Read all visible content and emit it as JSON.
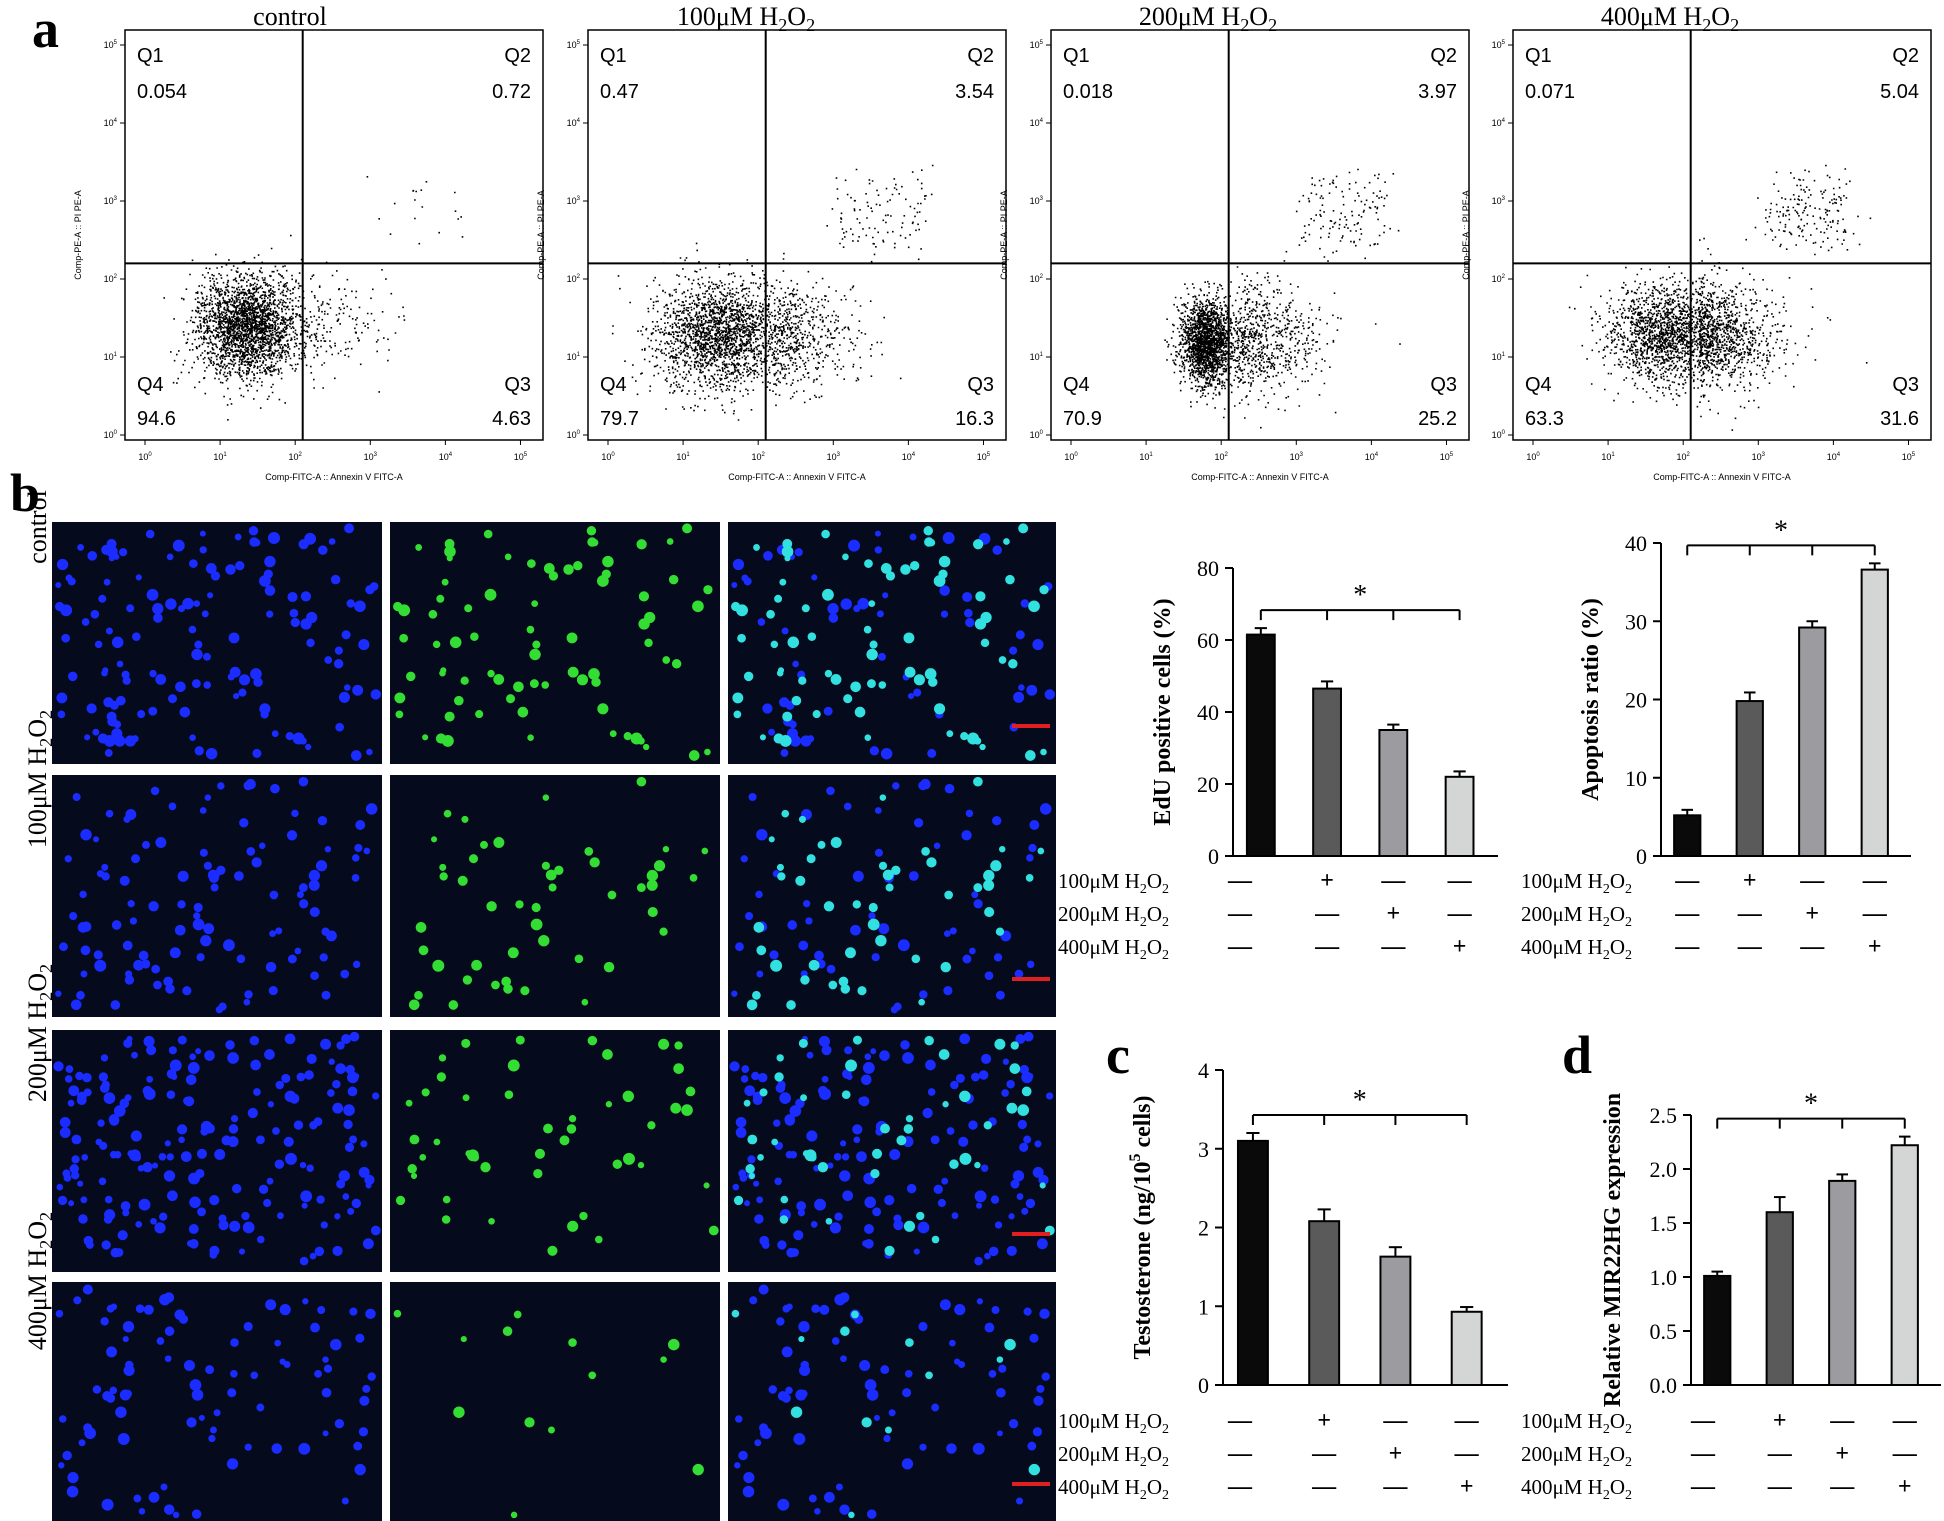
{
  "panel_labels": {
    "a": "a",
    "b": "b",
    "c": "c",
    "d": "d"
  },
  "flow": {
    "x_axis_label": "Comp-FITC-A :: Annexin V FITC-A",
    "y_axis_label": "Comp-PE-A :: PI PE-A",
    "x_ticks": [
      "10^0",
      "10^1",
      "10^2",
      "10^3",
      "10^4",
      "10^5"
    ],
    "y_ticks": [
      "10^0",
      "10^1",
      "10^2",
      "10^3",
      "10^4",
      "10^5"
    ],
    "panels": [
      {
        "title": "control",
        "q1": "0.054",
        "q2": "0.72",
        "q3": "4.63",
        "q4": "94.6"
      },
      {
        "title": "100μM H2O2",
        "q1": "0.47",
        "q2": "3.54",
        "q3": "16.3",
        "q4": "79.7"
      },
      {
        "title": "200μM H2O2",
        "q1": "0.018",
        "q2": "3.97",
        "q3": "25.2",
        "q4": "70.9"
      },
      {
        "title": "400μM H2O2",
        "q1": "0.071",
        "q2": "5.04",
        "q3": "31.6",
        "q4": "63.3"
      }
    ],
    "quadrant_names": [
      "Q1",
      "Q2",
      "Q3",
      "Q4"
    ]
  },
  "micrographs": {
    "rows": [
      "control",
      "100μM H2O2",
      "200μM H2O2",
      "400μM H2O2"
    ],
    "colors": {
      "dapi": "#1a2cff",
      "edu": "#33dd33",
      "merge": "#33e0e0",
      "background": "#050a1c",
      "scalebar": "#e02020"
    }
  },
  "treatment_rows": [
    "100μM H2O2",
    "200μM H2O2",
    "400μM H2O2"
  ],
  "treatment_matrix": [
    [
      "—",
      "+",
      "—",
      "—"
    ],
    [
      "—",
      "—",
      "+",
      "—"
    ],
    [
      "—",
      "—",
      "—",
      "+"
    ]
  ],
  "bar_colors": [
    "#0a0a0a",
    "#5a5a5a",
    "#9c9ca0",
    "#d4d6d6"
  ],
  "significance": "*",
  "chart_data": [
    {
      "id": "edu",
      "type": "bar",
      "categories": [
        "control",
        "100μM H2O2",
        "200μM H2O2",
        "400μM H2O2"
      ],
      "values": [
        61.5,
        46.5,
        35,
        22
      ],
      "errors": [
        1.8,
        2,
        1.5,
        1.5
      ],
      "ylabel": "EdU positive cells (%)",
      "ylim": [
        0,
        80
      ],
      "yticks": [
        "0",
        "20",
        "40",
        "60",
        "80"
      ]
    },
    {
      "id": "apoptosis",
      "type": "bar",
      "categories": [
        "control",
        "100μM H2O2",
        "200μM H2O2",
        "400μM H2O2"
      ],
      "values": [
        5.2,
        19.8,
        29.2,
        36.6
      ],
      "errors": [
        0.7,
        1.1,
        0.8,
        0.8
      ],
      "ylabel": "Apoptosis ratio (%)",
      "ylim": [
        0,
        40
      ],
      "yticks": [
        "0",
        "10",
        "20",
        "30",
        "40"
      ]
    },
    {
      "id": "testosterone",
      "type": "bar",
      "categories": [
        "control",
        "100μM H2O2",
        "200μM H2O2",
        "400μM H2O2"
      ],
      "values": [
        3.1,
        2.08,
        1.63,
        0.93
      ],
      "errors": [
        0.1,
        0.15,
        0.12,
        0.06
      ],
      "ylabel": "Testosterone (ng/10^5 cells)",
      "ylim": [
        0,
        4
      ],
      "yticks": [
        "0",
        "1",
        "2",
        "3",
        "4"
      ]
    },
    {
      "id": "mir22hg",
      "type": "bar",
      "categories": [
        "control",
        "100μM H2O2",
        "200μM H2O2",
        "400μM H2O2"
      ],
      "values": [
        1.01,
        1.6,
        1.89,
        2.22
      ],
      "errors": [
        0.04,
        0.14,
        0.06,
        0.08
      ],
      "ylabel": "Relative MIR22HG expression",
      "ylim": [
        0,
        2.5
      ],
      "yticks": [
        "0.0",
        "0.5",
        "1.0",
        "1.5",
        "2.0",
        "2.5"
      ]
    }
  ]
}
